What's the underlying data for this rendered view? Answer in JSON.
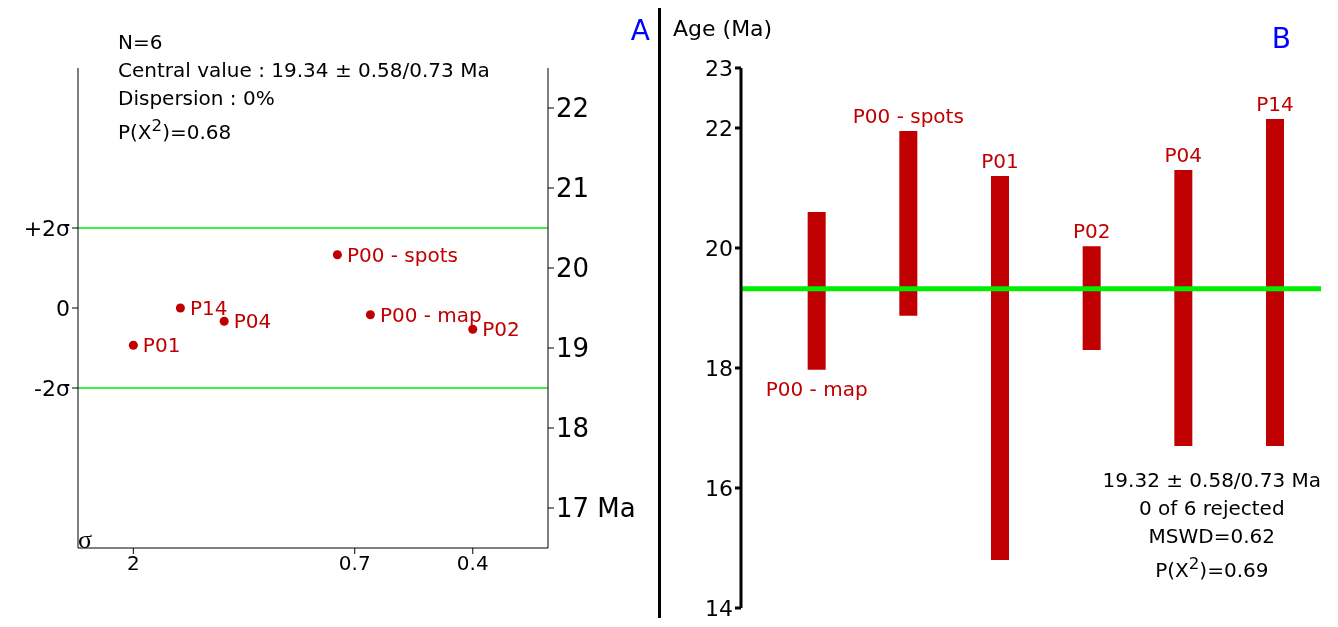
{
  "chart_data": [
    {
      "type": "scatter",
      "title": "A",
      "xlabel": "σ",
      "x": [
        2,
        1.6,
        1.3,
        0.76,
        0.65,
        0.4
      ],
      "series": [
        {
          "color": "#c00000",
          "values": [
            -0.93,
            0,
            -0.33,
            1.33,
            -0.17,
            -0.53
          ]
        }
      ],
      "value_labels": [
        "P01",
        "P14",
        "P04",
        "P00 - spots",
        "P00 - map",
        "P02"
      ],
      "marker": "circle",
      "xlim": [
        2.6,
        0.28
      ],
      "xticks": [
        2,
        0.7,
        0.4
      ],
      "log": "x",
      "ylim": [
        -6,
        6
      ],
      "yticks": [
        {
          "value": -2,
          "label": "-2σ"
        },
        0,
        {
          "value": 2,
          "label": "+2σ"
        }
      ],
      "y2lim": [
        16.5,
        22.5
      ],
      "y2ticks": [
        {
          "value": 17,
          "label": "17 Ma"
        },
        18,
        19,
        20,
        21,
        22
      ],
      "ref_lines": [
        {
          "axis": "y",
          "value": 2,
          "color": "#00ee00"
        },
        {
          "axis": "y",
          "value": -2,
          "color": "#00ee00"
        }
      ],
      "annotations": [
        "N=6",
        "Central value : 19.34 ± 0.58/0.73 Ma",
        "Dispersion : 0%",
        "P(X$^{2}$)=0.68"
      ],
      "grid": false
    },
    {
      "type": "bar",
      "title": "B",
      "ylabel": "Age (Ma)",
      "categories": [
        "P00 - map",
        "P00 - spots",
        "P01",
        "P02",
        "P04",
        "P14"
      ],
      "base": [
        17.97,
        18.87,
        14.8,
        18.3,
        16.7,
        16.7
      ],
      "values": [
        2.63,
        3.08,
        6.4,
        1.73,
        4.6,
        5.45
      ],
      "color": "#c00000",
      "ylim": [
        14,
        23
      ],
      "yticks": [
        14,
        16,
        18,
        20,
        22,
        23
      ],
      "ref_lines": [
        {
          "axis": "y",
          "value": 19.32,
          "color": "#00ee00"
        }
      ],
      "annotations": [
        "19.32 ± 0.58/0.73 Ma",
        "0 of 6 rejected",
        "MSWD=0.62",
        "P(X$^{2}$)=0.69"
      ],
      "tick_labels": "y",
      "grid": false
    }
  ]
}
